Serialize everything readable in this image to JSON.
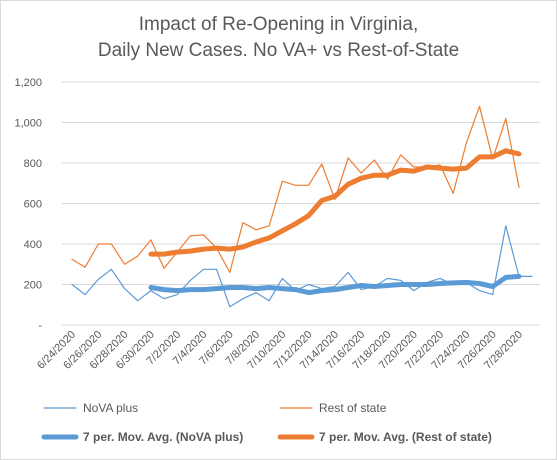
{
  "chart_data": {
    "type": "line",
    "title_lines": [
      "Impact of Re-Opening in Virginia,",
      "Daily New Cases. No VA+ vs Rest-of-State"
    ],
    "xlabel": "",
    "ylabel": "",
    "ylim": [
      0,
      1200
    ],
    "yticks": [
      {
        "value": 0,
        "label": "-"
      },
      {
        "value": 200,
        "label": "200"
      },
      {
        "value": 400,
        "label": "400"
      },
      {
        "value": 600,
        "label": "600"
      },
      {
        "value": 800,
        "label": "800"
      },
      {
        "value": 1000,
        "label": "1,000"
      },
      {
        "value": 1200,
        "label": "1,200"
      }
    ],
    "grid": true,
    "legend_position": "bottom",
    "x": [
      "6/24/2020",
      "6/25/2020",
      "6/26/2020",
      "6/27/2020",
      "6/28/2020",
      "6/29/2020",
      "6/30/2020",
      "7/1/2020",
      "7/2/2020",
      "7/3/2020",
      "7/4/2020",
      "7/5/2020",
      "7/6/2020",
      "7/7/2020",
      "7/8/2020",
      "7/9/2020",
      "7/10/2020",
      "7/11/2020",
      "7/12/2020",
      "7/13/2020",
      "7/14/2020",
      "7/15/2020",
      "7/16/2020",
      "7/17/2020",
      "7/18/2020",
      "7/19/2020",
      "7/20/2020",
      "7/21/2020",
      "7/22/2020",
      "7/23/2020",
      "7/24/2020",
      "7/25/2020",
      "7/26/2020",
      "7/27/2020",
      "7/28/2020",
      "7/29/2020"
    ],
    "x_tick_labels": [
      "6/24/2020",
      "6/26/2020",
      "6/28/2020",
      "6/30/2020",
      "7/2/2020",
      "7/4/2020",
      "7/6/2020",
      "7/8/2020",
      "7/10/2020",
      "7/12/2020",
      "7/14/2020",
      "7/16/2020",
      "7/18/2020",
      "7/20/2020",
      "7/22/2020",
      "7/24/2020",
      "7/26/2020",
      "7/28/2020"
    ],
    "series": [
      {
        "name": "NoVA plus",
        "color": "#5b9bd5",
        "width": "thin",
        "values": [
          200,
          150,
          225,
          275,
          180,
          120,
          170,
          130,
          150,
          220,
          275,
          275,
          90,
          130,
          160,
          120,
          230,
          170,
          200,
          180,
          190,
          260,
          175,
          190,
          230,
          220,
          170,
          210,
          230,
          200,
          210,
          170,
          150,
          490,
          240,
          240
        ]
      },
      {
        "name": "Rest of state",
        "color": "#ed7d31",
        "width": "thin",
        "values": [
          325,
          285,
          400,
          400,
          300,
          340,
          420,
          280,
          360,
          440,
          445,
          380,
          260,
          505,
          470,
          490,
          710,
          690,
          690,
          795,
          620,
          825,
          750,
          815,
          720,
          840,
          780,
          780,
          790,
          650,
          900,
          1080,
          820,
          1020,
          680,
          null
        ]
      },
      {
        "name": "7 per. Mov. Avg. (NoVA plus)",
        "color": "#5b9bd5",
        "width": "thick",
        "values": [
          null,
          null,
          null,
          null,
          null,
          null,
          185,
          175,
          170,
          175,
          175,
          180,
          185,
          185,
          180,
          185,
          180,
          175,
          160,
          170,
          175,
          185,
          195,
          190,
          195,
          200,
          200,
          200,
          205,
          208,
          210,
          205,
          190,
          235,
          240,
          null
        ]
      },
      {
        "name": "7 per. Mov. Avg. (Rest of state)",
        "color": "#ed7d31",
        "width": "thick",
        "values": [
          null,
          null,
          null,
          null,
          null,
          null,
          350,
          350,
          360,
          365,
          375,
          380,
          375,
          385,
          410,
          430,
          465,
          500,
          540,
          615,
          635,
          695,
          725,
          740,
          740,
          765,
          760,
          780,
          775,
          770,
          775,
          830,
          830,
          860,
          845,
          null
        ]
      }
    ]
  }
}
